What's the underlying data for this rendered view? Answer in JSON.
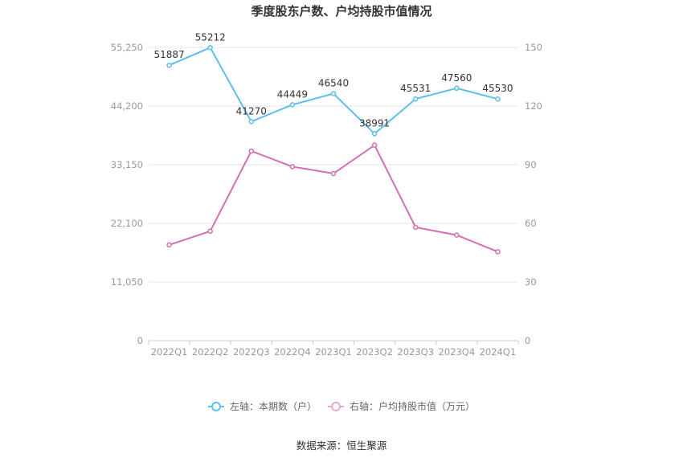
{
  "chart_data": {
    "type": "line",
    "title": "季度股东户数、户均持股市值情况",
    "categories": [
      "2022Q1",
      "2022Q2",
      "2022Q3",
      "2022Q4",
      "2023Q1",
      "2023Q2",
      "2023Q3",
      "2023Q4",
      "2024Q1"
    ],
    "y_left": {
      "ticks": [
        "0",
        "11,050",
        "22,100",
        "33,150",
        "44,200",
        "55,250"
      ],
      "range": [
        0,
        55250
      ]
    },
    "y_right": {
      "ticks": [
        "0",
        "30",
        "60",
        "90",
        "120",
        "150"
      ],
      "range": [
        0,
        150
      ]
    },
    "series": [
      {
        "name": "左轴：本期数（户）",
        "axis": "left",
        "color": "#5bc0eb",
        "values": [
          51887,
          55212,
          41270,
          44449,
          46540,
          38991,
          45531,
          47560,
          45530
        ],
        "labels": [
          "51887",
          "55212",
          "41270",
          "44449",
          "46540",
          "38991",
          "45531",
          "47560",
          "45530"
        ]
      },
      {
        "name": "右轴：户均持股市值（万元）",
        "axis": "right",
        "color": "#d36fb0",
        "values": [
          49,
          56,
          97,
          89,
          85.5,
          100,
          58,
          54,
          45.5
        ]
      }
    ],
    "legend_position": "bottom-center",
    "grid": true
  },
  "source": "数据来源：恒生聚源"
}
